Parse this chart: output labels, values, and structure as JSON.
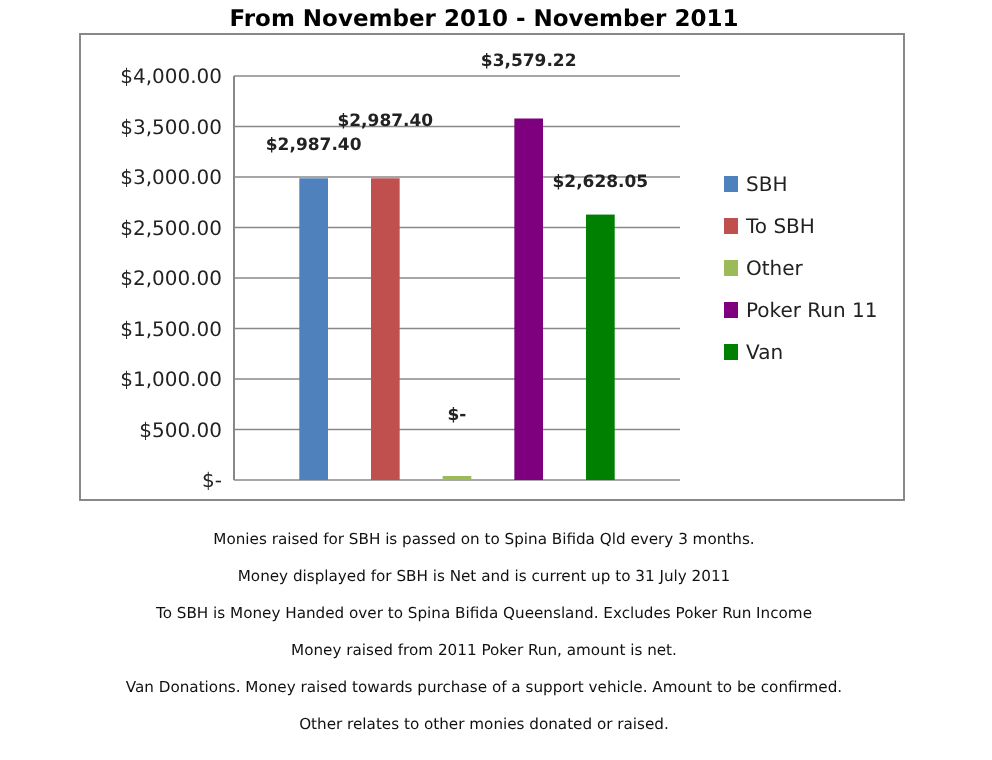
{
  "chart_data": {
    "type": "bar",
    "title": "From  November 2010 - November 2011",
    "categories": [
      null
    ],
    "series": [
      {
        "name": "SBH",
        "color": "#4f81bd",
        "values": [
          2987.4
        ],
        "value_labels": [
          "$2,987.40"
        ]
      },
      {
        "name": "To SBH",
        "color": "#c0504d",
        "values": [
          2987.4
        ],
        "value_labels": [
          "$2,987.40"
        ]
      },
      {
        "name": "Other",
        "color": "#9bbb59",
        "values": [
          0
        ],
        "value_labels": [
          "$-"
        ]
      },
      {
        "name": "Poker Run 11",
        "color": "#7f007f",
        "values": [
          3579.22
        ],
        "value_labels": [
          "$3,579.22"
        ]
      },
      {
        "name": "Van",
        "color": "#008000",
        "values": [
          2628.05
        ],
        "value_labels": [
          "$2,628.05"
        ]
      }
    ],
    "ylim": [
      0,
      4000
    ],
    "yticks": [
      {
        "value": 0,
        "label": "$-"
      },
      {
        "value": 500,
        "label": "$500.00"
      },
      {
        "value": 1000,
        "label": "$1,000.00"
      },
      {
        "value": 1500,
        "label": "$1,500.00"
      },
      {
        "value": 2000,
        "label": "$2,000.00"
      },
      {
        "value": 2500,
        "label": "$2,500.00"
      },
      {
        "value": 3000,
        "label": "$3,000.00"
      },
      {
        "value": 3500,
        "label": "$3,500.00"
      },
      {
        "value": 4000,
        "label": "$4,000.00"
      }
    ],
    "grid": "y",
    "legend": "right",
    "annotations": [
      "Monies raised for SBH is passed on to Spina Bifida Qld every 3 months.",
      "Money displayed for SBH is Net and is current up to 31 July 2011",
      "To SBH is Money Handed over to Spina Bifida Queensland.  Excludes Poker Run Income",
      "Money raised from 2011 Poker Run, amount is net.",
      "Van  Donations.  Money raised towards purchase of a support vehicle.  Amount to be confirmed.",
      "Other relates to other monies donated or raised."
    ]
  }
}
